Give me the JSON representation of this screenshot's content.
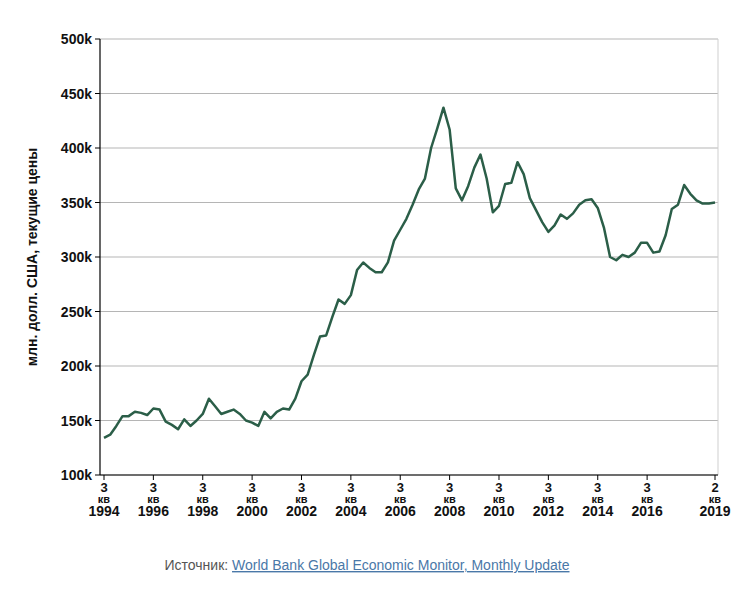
{
  "chart_data": {
    "type": "line",
    "y_label": "млн. долл. США, текущие цены",
    "source_prefix": "Источник:",
    "source": "World Bank Global Economic Monitor, Monthly Update",
    "color": "#2b5e48",
    "grid": true,
    "categories": [
      "3 кв 1994",
      null,
      null,
      null,
      null,
      null,
      null,
      null,
      "3 кв 1996",
      null,
      null,
      null,
      null,
      null,
      null,
      null,
      "3 кв 1998",
      null,
      null,
      null,
      null,
      null,
      null,
      null,
      "3 кв 2000",
      null,
      null,
      null,
      null,
      null,
      null,
      null,
      "3 кв 2002",
      null,
      null,
      null,
      null,
      null,
      null,
      null,
      "3 кв 2004",
      null,
      null,
      null,
      null,
      null,
      null,
      null,
      "3 кв 2006",
      null,
      null,
      null,
      null,
      null,
      null,
      null,
      "3 кв 2008",
      null,
      null,
      null,
      null,
      null,
      null,
      null,
      "3 кв 2010",
      null,
      null,
      null,
      null,
      null,
      null,
      null,
      "3 кв 2012",
      null,
      null,
      null,
      null,
      null,
      null,
      null,
      "3 кв 2014",
      null,
      null,
      null,
      null,
      null,
      null,
      null,
      "3 кв 2016",
      null,
      null,
      null,
      null,
      null,
      null,
      null,
      null,
      null,
      null,
      "2 кв 2019"
    ],
    "values": [
      134000,
      137000,
      145000,
      154000,
      154000,
      158000,
      157000,
      155000,
      161000,
      160000,
      149000,
      146000,
      142000,
      151000,
      145000,
      150000,
      156000,
      170000,
      163000,
      156000,
      158000,
      160000,
      156000,
      150000,
      148000,
      145000,
      158000,
      152000,
      158000,
      161000,
      160000,
      170000,
      186000,
      192000,
      210000,
      227000,
      228000,
      245000,
      261000,
      257000,
      265000,
      288000,
      295000,
      290000,
      286000,
      286000,
      295000,
      315000,
      325000,
      335000,
      348000,
      362000,
      372000,
      400000,
      418000,
      437000,
      417000,
      363000,
      352000,
      365000,
      382000,
      394000,
      372000,
      341000,
      347000,
      367000,
      368000,
      387000,
      376000,
      354000,
      343000,
      332000,
      323000,
      329000,
      339000,
      335000,
      340000,
      348000,
      352000,
      353000,
      345000,
      327000,
      300000,
      297000,
      302000,
      300000,
      304000,
      313000,
      313000,
      304000,
      305000,
      320000,
      344000,
      348000,
      366000,
      358000,
      352000,
      349000,
      349000,
      350000
    ],
    "ylim": [
      100000,
      500000
    ],
    "yticks": [
      {
        "value": 100000,
        "label": "100k"
      },
      {
        "value": 150000,
        "label": "150k"
      },
      {
        "value": 200000,
        "label": "200k"
      },
      {
        "value": 250000,
        "label": "250k"
      },
      {
        "value": 300000,
        "label": "300k"
      },
      {
        "value": 350000,
        "label": "350k"
      },
      {
        "value": 400000,
        "label": "400k"
      },
      {
        "value": 450000,
        "label": "450k"
      },
      {
        "value": 500000,
        "label": "500k"
      }
    ]
  }
}
